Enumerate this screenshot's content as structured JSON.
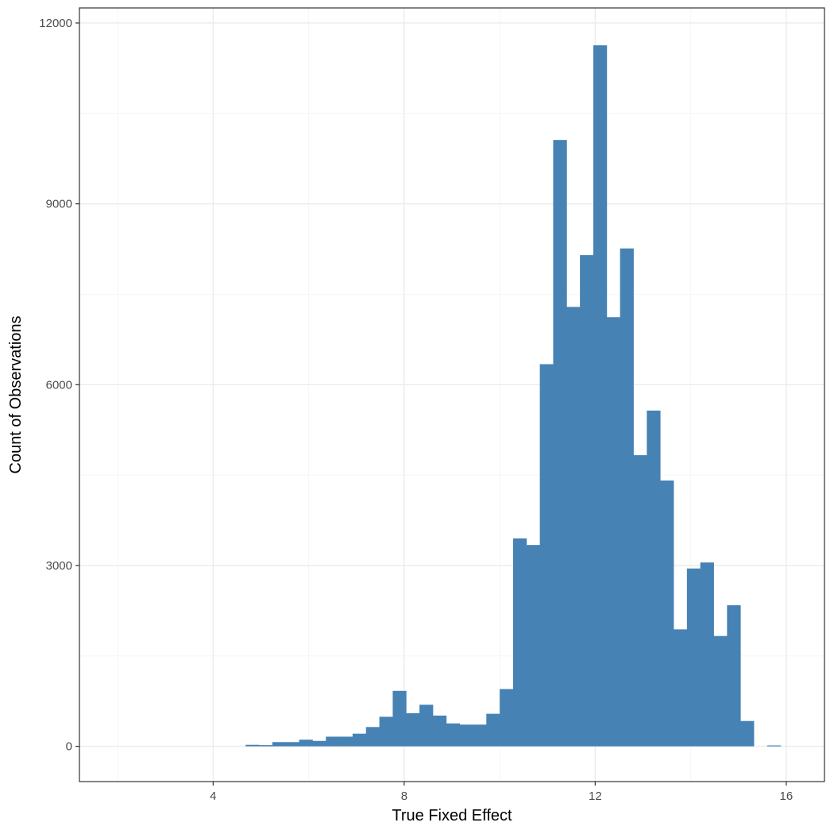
{
  "chart_data": {
    "type": "bar",
    "title": "",
    "xlabel": "True Fixed Effect",
    "ylabel": "Count of Observations",
    "xlim": [
      1.2,
      16.8
    ],
    "ylim": [
      -585,
      12250
    ],
    "x_ticks": [
      4,
      8,
      12,
      16
    ],
    "x_tick_labels": [
      "4",
      "8",
      "12",
      "16"
    ],
    "y_ticks": [
      0,
      3000,
      6000,
      9000,
      12000
    ],
    "y_tick_labels": [
      "0",
      "3000",
      "6000",
      "9000",
      "12000"
    ],
    "grid": true,
    "bin_width": 0.28,
    "bins": [
      {
        "x0": 4.68,
        "x1": 4.96,
        "value": 25
      },
      {
        "x0": 4.96,
        "x1": 5.24,
        "value": 20
      },
      {
        "x0": 5.24,
        "x1": 5.52,
        "value": 70
      },
      {
        "x0": 5.52,
        "x1": 5.8,
        "value": 70
      },
      {
        "x0": 5.8,
        "x1": 6.08,
        "value": 110
      },
      {
        "x0": 6.08,
        "x1": 6.36,
        "value": 90
      },
      {
        "x0": 6.36,
        "x1": 6.64,
        "value": 160
      },
      {
        "x0": 6.64,
        "x1": 6.92,
        "value": 160
      },
      {
        "x0": 6.92,
        "x1": 7.2,
        "value": 210
      },
      {
        "x0": 7.2,
        "x1": 7.48,
        "value": 320
      },
      {
        "x0": 7.48,
        "x1": 7.76,
        "value": 490
      },
      {
        "x0": 7.76,
        "x1": 8.04,
        "value": 920
      },
      {
        "x0": 8.04,
        "x1": 8.32,
        "value": 550
      },
      {
        "x0": 8.32,
        "x1": 8.6,
        "value": 690
      },
      {
        "x0": 8.6,
        "x1": 8.88,
        "value": 510
      },
      {
        "x0": 8.88,
        "x1": 9.16,
        "value": 380
      },
      {
        "x0": 9.16,
        "x1": 9.44,
        "value": 360
      },
      {
        "x0": 9.44,
        "x1": 9.72,
        "value": 360
      },
      {
        "x0": 9.72,
        "x1": 10.0,
        "value": 540
      },
      {
        "x0": 10.0,
        "x1": 10.28,
        "value": 950
      },
      {
        "x0": 10.28,
        "x1": 10.56,
        "value": 3450
      },
      {
        "x0": 10.56,
        "x1": 10.84,
        "value": 3340
      },
      {
        "x0": 10.84,
        "x1": 11.12,
        "value": 6340
      },
      {
        "x0": 11.12,
        "x1": 11.4,
        "value": 10060
      },
      {
        "x0": 11.4,
        "x1": 11.68,
        "value": 7290
      },
      {
        "x0": 11.68,
        "x1": 11.96,
        "value": 8150
      },
      {
        "x0": 11.96,
        "x1": 12.24,
        "value": 11630
      },
      {
        "x0": 12.24,
        "x1": 12.52,
        "value": 7120
      },
      {
        "x0": 12.52,
        "x1": 12.8,
        "value": 8260
      },
      {
        "x0": 12.8,
        "x1": 13.08,
        "value": 4830
      },
      {
        "x0": 13.08,
        "x1": 13.36,
        "value": 5570
      },
      {
        "x0": 13.36,
        "x1": 13.64,
        "value": 4410
      },
      {
        "x0": 13.64,
        "x1": 13.92,
        "value": 1940
      },
      {
        "x0": 13.92,
        "x1": 14.2,
        "value": 2950
      },
      {
        "x0": 14.2,
        "x1": 14.48,
        "value": 3050
      },
      {
        "x0": 14.48,
        "x1": 14.76,
        "value": 1830
      },
      {
        "x0": 14.76,
        "x1": 15.04,
        "value": 2340
      },
      {
        "x0": 15.04,
        "x1": 15.32,
        "value": 420
      },
      {
        "x0": 15.32,
        "x1": 15.6,
        "value": 0
      },
      {
        "x0": 15.6,
        "x1": 15.88,
        "value": 15
      }
    ],
    "colors": {
      "bar": "#4682b4",
      "grid_major": "#ebebeb",
      "grid_minor": "#f5f5f5",
      "border": "#333333",
      "tick_text": "#4d4d4d"
    }
  }
}
